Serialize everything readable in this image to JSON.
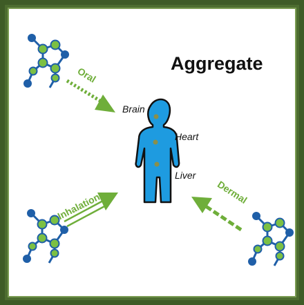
{
  "title": "Aggregate",
  "routes": {
    "oral": "Oral",
    "inhalation": "Inhalation",
    "dermal": "Dermal"
  },
  "organs": {
    "brain": "Brain",
    "heart": "Heart",
    "liver": "Liver"
  },
  "colors": {
    "border_outer": "#3e5b26",
    "border_inner": "#7a9b52",
    "arrow_green": "#6fae3a",
    "node_blue": "#1f5fa8",
    "node_green": "#7cc043",
    "person_blue": "#1e9be0",
    "organ_dot": "#8a8f4a"
  }
}
